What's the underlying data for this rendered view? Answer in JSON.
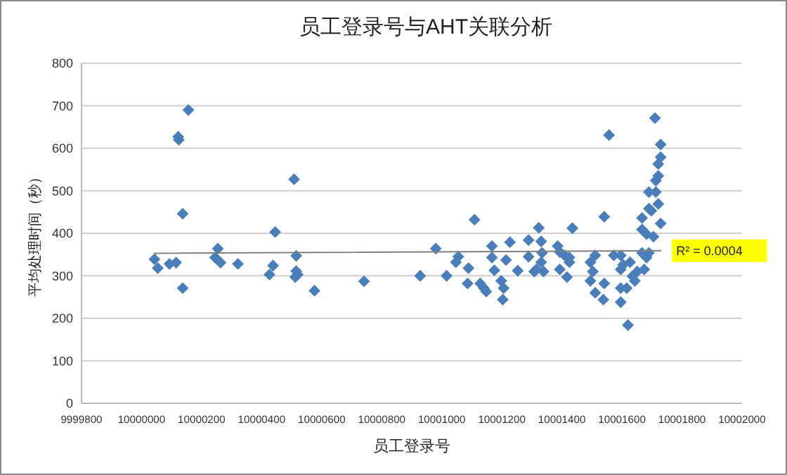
{
  "chart_data": {
    "type": "scatter",
    "title": "员工登录号与AHT关联分析",
    "xlabel": "员工登录号",
    "ylabel": "平均处理时间（秒）",
    "xlim": [
      9999800,
      10002000
    ],
    "xticks": [
      9999800,
      10000000,
      10000200,
      10000400,
      10000600,
      10000800,
      10001000,
      10001200,
      10001400,
      10001600,
      10001800,
      10002000
    ],
    "ylim": [
      0,
      800
    ],
    "yticks": [
      0,
      100,
      200,
      300,
      400,
      500,
      600,
      700,
      800
    ],
    "grid": "y",
    "marker": "diamond",
    "annotations": [
      "R² = 0.0004"
    ],
    "series": [
      {
        "color": "#4a7ebb",
        "x": [
          10000043,
          10000054,
          10000093,
          10000115,
          10000122,
          10000124,
          10000156,
          10000137,
          10000137,
          10000245,
          10000254,
          10000263,
          10000321,
          10000426,
          10000438,
          10000445,
          10000508,
          10000515,
          10000515,
          10000512,
          10000520,
          10000576,
          10000741,
          10000928,
          10000980,
          10001016,
          10001047,
          10001055,
          10001089,
          10001086,
          10001109,
          10001128,
          10001140,
          10001148,
          10001167,
          10001167,
          10001175,
          10001198,
          10001206,
          10001203,
          10001214,
          10001227,
          10001253,
          10001289,
          10001289,
          10001308,
          10001323,
          10001331,
          10001334,
          10001331,
          10001339,
          10001315,
          10001386,
          10001393,
          10001409,
          10001425,
          10001393,
          10001417,
          10001425,
          10001435,
          10001495,
          10001503,
          10001511,
          10001495,
          10001511,
          10001538,
          10001541,
          10001541,
          10001557,
          10001573,
          10001596,
          10001596,
          10001604,
          10001596,
          10001596,
          10001616,
          10001620,
          10001627,
          10001635,
          10001651,
          10001643,
          10001667,
          10001674,
          10001682,
          10001667,
          10001667,
          10001682,
          10001705,
          10001690,
          10001698,
          10001690,
          10001713,
          10001721,
          10001729,
          10001713,
          10001721,
          10001721,
          10001729,
          10001729,
          10001710,
          10001690
        ],
        "values": [
          339,
          318,
          328,
          331,
          627,
          620,
          690,
          446,
          271,
          343,
          364,
          331,
          328,
          303,
          324,
          403,
          527,
          347,
          311,
          297,
          303,
          265,
          287,
          300,
          364,
          300,
          332,
          345,
          318,
          282,
          432,
          282,
          271,
          263,
          370,
          343,
          313,
          288,
          271,
          244,
          337,
          379,
          312,
          345,
          384,
          310,
          413,
          381,
          354,
          332,
          310,
          315,
          370,
          356,
          348,
          343,
          315,
          297,
          332,
          412,
          332,
          310,
          348,
          288,
          260,
          244,
          439,
          282,
          631,
          348,
          348,
          315,
          326,
          271,
          238,
          271,
          184,
          332,
          299,
          310,
          288,
          354,
          315,
          343,
          436,
          409,
          398,
          392,
          458,
          453,
          497,
          497,
          469,
          423,
          524,
          535,
          563,
          579,
          609,
          671,
          354
        ]
      },
      {
        "type": "line",
        "color": "#808080",
        "marker": "none",
        "x": [
          10000043,
          10001729
        ],
        "values": [
          353,
          359
        ]
      }
    ]
  }
}
